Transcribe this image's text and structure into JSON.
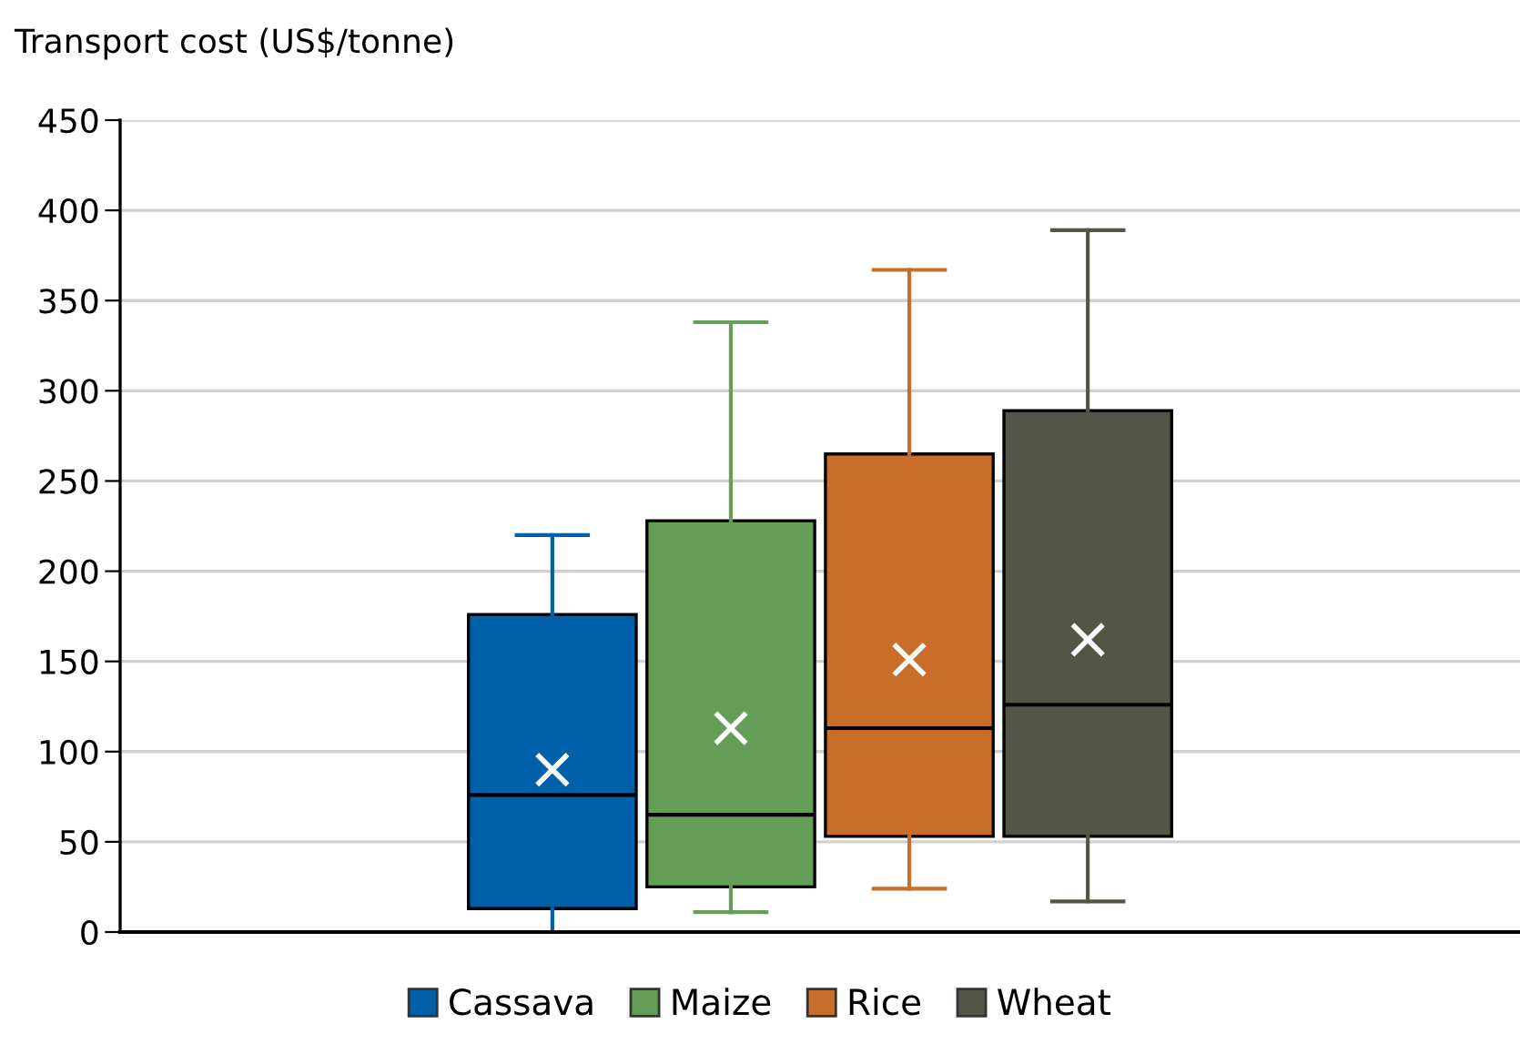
{
  "chart_data": {
    "type": "box",
    "ylabel": "Transport cost (US$/tonne)",
    "categories": [
      null
    ],
    "series": [
      {
        "name": "Cassava",
        "color": "#0061aa",
        "boxes": [
          {
            "low": 0,
            "q1": 13,
            "median": 76,
            "q3": 176,
            "high": 220,
            "mean": 90
          }
        ]
      },
      {
        "name": "Maize",
        "color": "#659e56",
        "boxes": [
          {
            "low": 11,
            "q1": 25,
            "median": 65,
            "q3": 228,
            "high": 338,
            "mean": 113
          }
        ]
      },
      {
        "name": "Rice",
        "color": "#c86e2a",
        "boxes": [
          {
            "low": 24,
            "q1": 53,
            "median": 113,
            "q3": 265,
            "high": 367,
            "mean": 151
          }
        ]
      },
      {
        "name": "Wheat",
        "color": "#535546",
        "boxes": [
          {
            "low": 17,
            "q1": 53,
            "median": 126,
            "q3": 289,
            "high": 389,
            "mean": 162
          }
        ]
      }
    ],
    "ylim": [
      0,
      450
    ],
    "yticks": [
      0,
      50,
      100,
      150,
      200,
      250,
      300,
      350,
      400,
      450
    ],
    "grid": "y",
    "legend": "bottom"
  }
}
